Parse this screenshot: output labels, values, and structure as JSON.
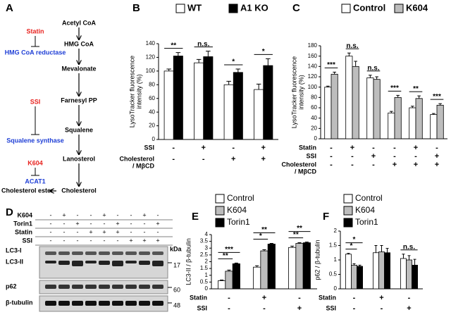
{
  "pathway": {
    "panel": "A",
    "nodes": [
      "Acetyl CoA",
      "HMG CoA",
      "Mevalonate",
      "Farnesyl PP",
      "Squalene",
      "Lanosterol",
      "Cholesterol"
    ],
    "ester": "Cholesterol ester",
    "inhibitors": [
      {
        "drug": "Statin",
        "enzyme": "HMG CoA reductase"
      },
      {
        "drug": "SSI",
        "enzyme": "Squalene synthase"
      },
      {
        "drug": "K604",
        "enzyme": "ACAT1"
      }
    ]
  },
  "blot": {
    "panel": "D",
    "treatments": [
      {
        "label": "K604",
        "signs": [
          "-",
          "+",
          "-",
          "-",
          "+",
          "-",
          "-",
          "+",
          "-"
        ]
      },
      {
        "label": "Torin1",
        "signs": [
          "-",
          "-",
          "+",
          "-",
          "-",
          "+",
          "-",
          "-",
          "+"
        ]
      },
      {
        "label": "Statin",
        "signs": [
          "-",
          "-",
          "-",
          "+",
          "+",
          "+",
          "-",
          "-",
          "-"
        ]
      },
      {
        "label": "SSI",
        "signs": [
          "-",
          "-",
          "-",
          "-",
          "-",
          "-",
          "+",
          "+",
          "+"
        ]
      }
    ],
    "bands": [
      "LC3-I",
      "LC3-II",
      "p62",
      "β-tubulin"
    ],
    "unit": "kDa",
    "markers": [
      "17",
      "60",
      "48"
    ]
  },
  "chart_data": [
    {
      "type": "bar",
      "panel": "B",
      "ylabel": [
        "LysoTracker fluorescence",
        "intensity (%)"
      ],
      "series": [
        {
          "name": "WT",
          "color": "#ffffff",
          "values": [
            100,
            112,
            80,
            73
          ],
          "errors": [
            3,
            5,
            5,
            8
          ]
        },
        {
          "name": "A1 KO",
          "color": "#000000",
          "values": [
            122,
            121,
            98,
            108
          ],
          "errors": [
            5,
            8,
            5,
            10
          ]
        }
      ],
      "ylim": [
        0,
        140
      ],
      "yticks": [
        0,
        20,
        40,
        60,
        80,
        100,
        120,
        140
      ],
      "significance": [
        "**",
        "n.s.",
        "*",
        "*"
      ],
      "conditions": [
        {
          "label": [
            "SSI"
          ],
          "signs": [
            "-",
            "+",
            "-",
            "+"
          ]
        },
        {
          "label": [
            "Cholesterol",
            "/ MβCD"
          ],
          "signs": [
            "-",
            "-",
            "+",
            "+"
          ]
        }
      ]
    },
    {
      "type": "bar",
      "panel": "C",
      "ylabel": [
        "LysoTracker fluorescence",
        "intensity (%)"
      ],
      "series": [
        {
          "name": "Control",
          "color": "#ffffff",
          "values": [
            100,
            160,
            118,
            50,
            60,
            47
          ],
          "errors": [
            2,
            6,
            5,
            3,
            3,
            2
          ]
        },
        {
          "name": "K604",
          "color": "#bdbdbd",
          "values": [
            125,
            140,
            115,
            80,
            78,
            65
          ],
          "errors": [
            4,
            10,
            5,
            4,
            5,
            3
          ]
        }
      ],
      "ylim": [
        0,
        180
      ],
      "yticks": [
        0,
        20,
        40,
        60,
        80,
        100,
        120,
        140,
        160,
        180
      ],
      "significance": [
        "***",
        "n.s.",
        "n.s.",
        "***",
        "**",
        "***"
      ],
      "conditions": [
        {
          "label": [
            "Statin"
          ],
          "signs": [
            "-",
            "+",
            "-",
            "-",
            "+",
            "-"
          ]
        },
        {
          "label": [
            "SSI"
          ],
          "signs": [
            "-",
            "-",
            "+",
            "-",
            "-",
            "+"
          ]
        },
        {
          "label": [
            "Cholesterol",
            "/ MβCD"
          ],
          "signs": [
            "-",
            "-",
            "-",
            "+",
            "+",
            "+"
          ]
        }
      ]
    },
    {
      "type": "bar",
      "panel": "E",
      "ylabel": [
        "LC3-II / β-tubulin"
      ],
      "series": [
        {
          "name": "Control",
          "color": "#ffffff",
          "values": [
            0.6,
            1.6,
            3.05
          ],
          "errors": [
            0.05,
            0.1,
            0.1
          ]
        },
        {
          "name": "K604",
          "color": "#bdbdbd",
          "values": [
            1.3,
            2.8,
            3.35
          ],
          "errors": [
            0.08,
            0.08,
            0.05
          ]
        },
        {
          "name": "Torin1",
          "color": "#000000",
          "values": [
            1.85,
            3.3,
            3.4
          ],
          "errors": [
            0.05,
            0.05,
            0.05
          ]
        }
      ],
      "ylim": [
        0,
        4
      ],
      "yticks": [
        0,
        0.5,
        1,
        1.5,
        2,
        2.5,
        3,
        3.5,
        4
      ],
      "significance": [
        "**",
        "***",
        "*",
        "**",
        "**",
        "**"
      ],
      "conditions": [
        {
          "label": [
            "Statin"
          ],
          "signs": [
            "-",
            "+",
            "-"
          ]
        },
        {
          "label": [
            "SSI"
          ],
          "signs": [
            "-",
            "-",
            "+"
          ]
        }
      ]
    },
    {
      "type": "bar",
      "panel": "F",
      "ylabel": [
        "p62 / β-tubulin"
      ],
      "series": [
        {
          "name": "Control",
          "color": "#ffffff",
          "values": [
            1.2,
            1.25,
            1.05
          ],
          "errors": [
            0.03,
            0.25,
            0.15
          ]
        },
        {
          "name": "K604",
          "color": "#bdbdbd",
          "values": [
            0.82,
            1.28,
            1.0
          ],
          "errors": [
            0.05,
            0.22,
            0.15
          ]
        },
        {
          "name": "Torin1",
          "color": "#000000",
          "values": [
            0.78,
            1.25,
            0.82
          ],
          "errors": [
            0.04,
            0.15,
            0.2
          ]
        }
      ],
      "ylim": [
        0,
        2
      ],
      "yticks": [
        0,
        0.5,
        1,
        1.5,
        2
      ],
      "significance": [
        "*",
        "*",
        "n.s."
      ],
      "conditions": [
        {
          "label": [
            "Statin"
          ],
          "signs": [
            "-",
            "+",
            "-"
          ]
        },
        {
          "label": [
            "SSI"
          ],
          "signs": [
            "-",
            "-",
            "+"
          ]
        }
      ]
    }
  ]
}
